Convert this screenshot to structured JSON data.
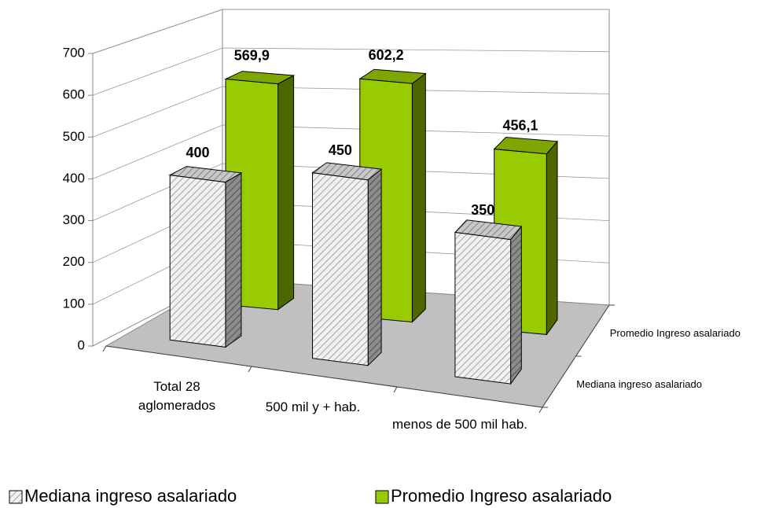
{
  "chart_data": {
    "type": "bar3d",
    "categories": [
      "Total 28 aglomerados",
      "500 mil y + hab.",
      "menos de 500 mil hab."
    ],
    "series": [
      {
        "name": "Mediana ingreso asalariado",
        "color": "#d9d9d9",
        "values": [
          400,
          450,
          350
        ]
      },
      {
        "name": "Promedio Ingreso asalariado",
        "color": "#99cc00",
        "values": [
          569.9,
          602.2,
          456.1
        ],
        "value_labels": [
          "569,9",
          "602,2",
          "456,1"
        ]
      }
    ],
    "ylim": [
      0,
      700
    ],
    "yticks": [
      0,
      100,
      200,
      300,
      400,
      500,
      600,
      700
    ],
    "grid": true,
    "legend": "bottom"
  }
}
